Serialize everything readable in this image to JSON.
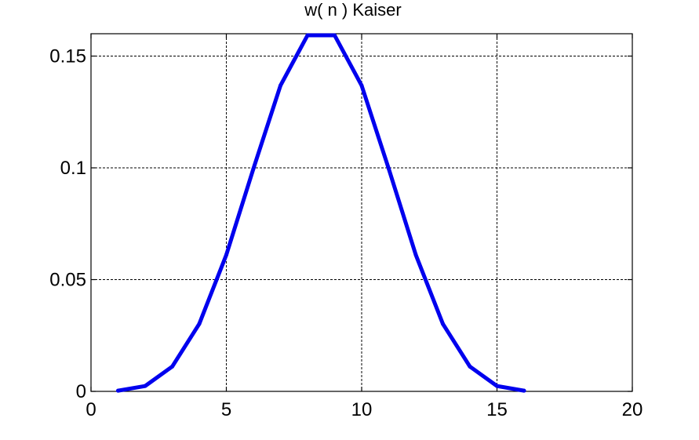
{
  "chart_data": {
    "type": "line",
    "title": "w( n ) Kaiser",
    "xlabel": "",
    "ylabel": "",
    "xlim": [
      0,
      20
    ],
    "ylim": [
      0,
      0.16
    ],
    "x_ticks": [
      0,
      5,
      10,
      15,
      20
    ],
    "x_tick_labels": [
      "0",
      "5",
      "10",
      "15",
      "20"
    ],
    "y_ticks": [
      0,
      0.05,
      0.1,
      0.15
    ],
    "y_tick_labels": [
      "0",
      "0.05",
      "0.1",
      "0.15"
    ],
    "grid": true,
    "legend": "none",
    "series": [
      {
        "color": "#0000ee",
        "x": [
          1,
          2,
          3,
          4,
          5,
          6,
          7,
          8,
          9,
          10,
          11,
          12,
          13,
          14,
          15,
          16
        ],
        "y": [
          0.0003,
          0.0024,
          0.0111,
          0.0302,
          0.0611,
          0.0996,
          0.1368,
          0.1593,
          0.1593,
          0.1368,
          0.0996,
          0.0611,
          0.0302,
          0.0111,
          0.0024,
          0.0003
        ]
      }
    ]
  }
}
